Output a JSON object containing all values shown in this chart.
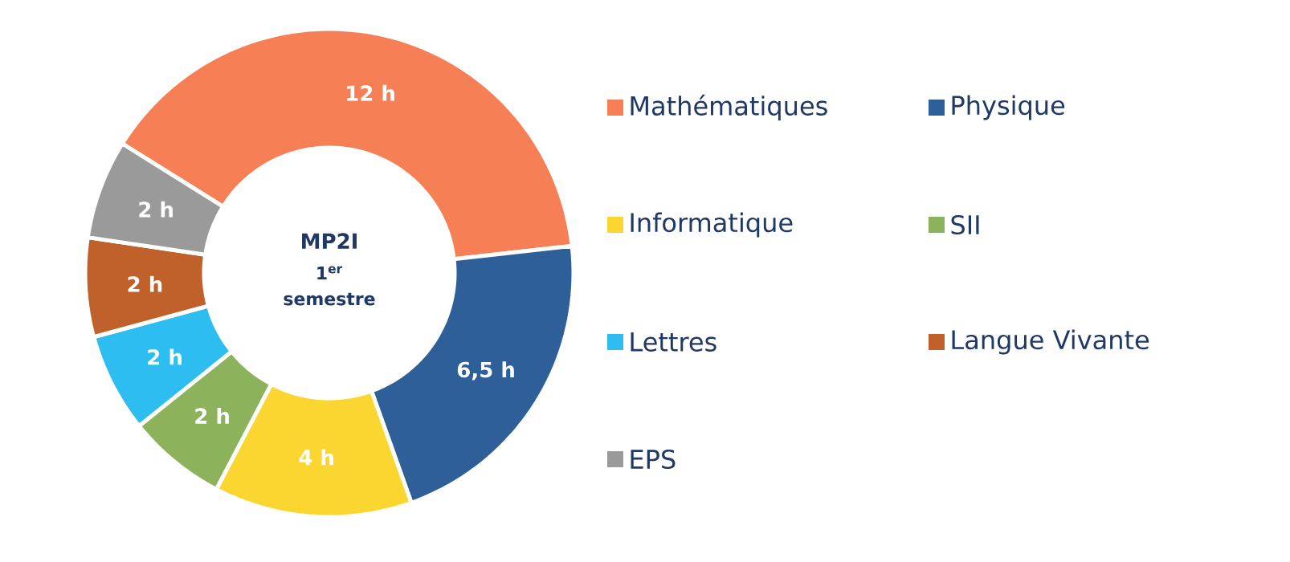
{
  "chart_data": {
    "type": "donut",
    "title": "MP2I",
    "subtitle": "1$^{er}$ semestre",
    "categories": [
      "Mathématiques",
      "Physique",
      "Informatique",
      "SII",
      "Lettres",
      "Langue Vivante",
      "EPS"
    ],
    "values": [
      12,
      6.5,
      4,
      2,
      2,
      2,
      2
    ],
    "value_labels": [
      "12 h",
      "6,5 h",
      "4 h",
      "2 h",
      "2 h",
      "2 h",
      "2 h"
    ],
    "colors": [
      "#f77f56",
      "#2f5f98",
      "#fbd631",
      "#8db25c",
      "#2dbdf0",
      "#c0612b",
      "#9a9a9a"
    ],
    "legend": "right"
  }
}
